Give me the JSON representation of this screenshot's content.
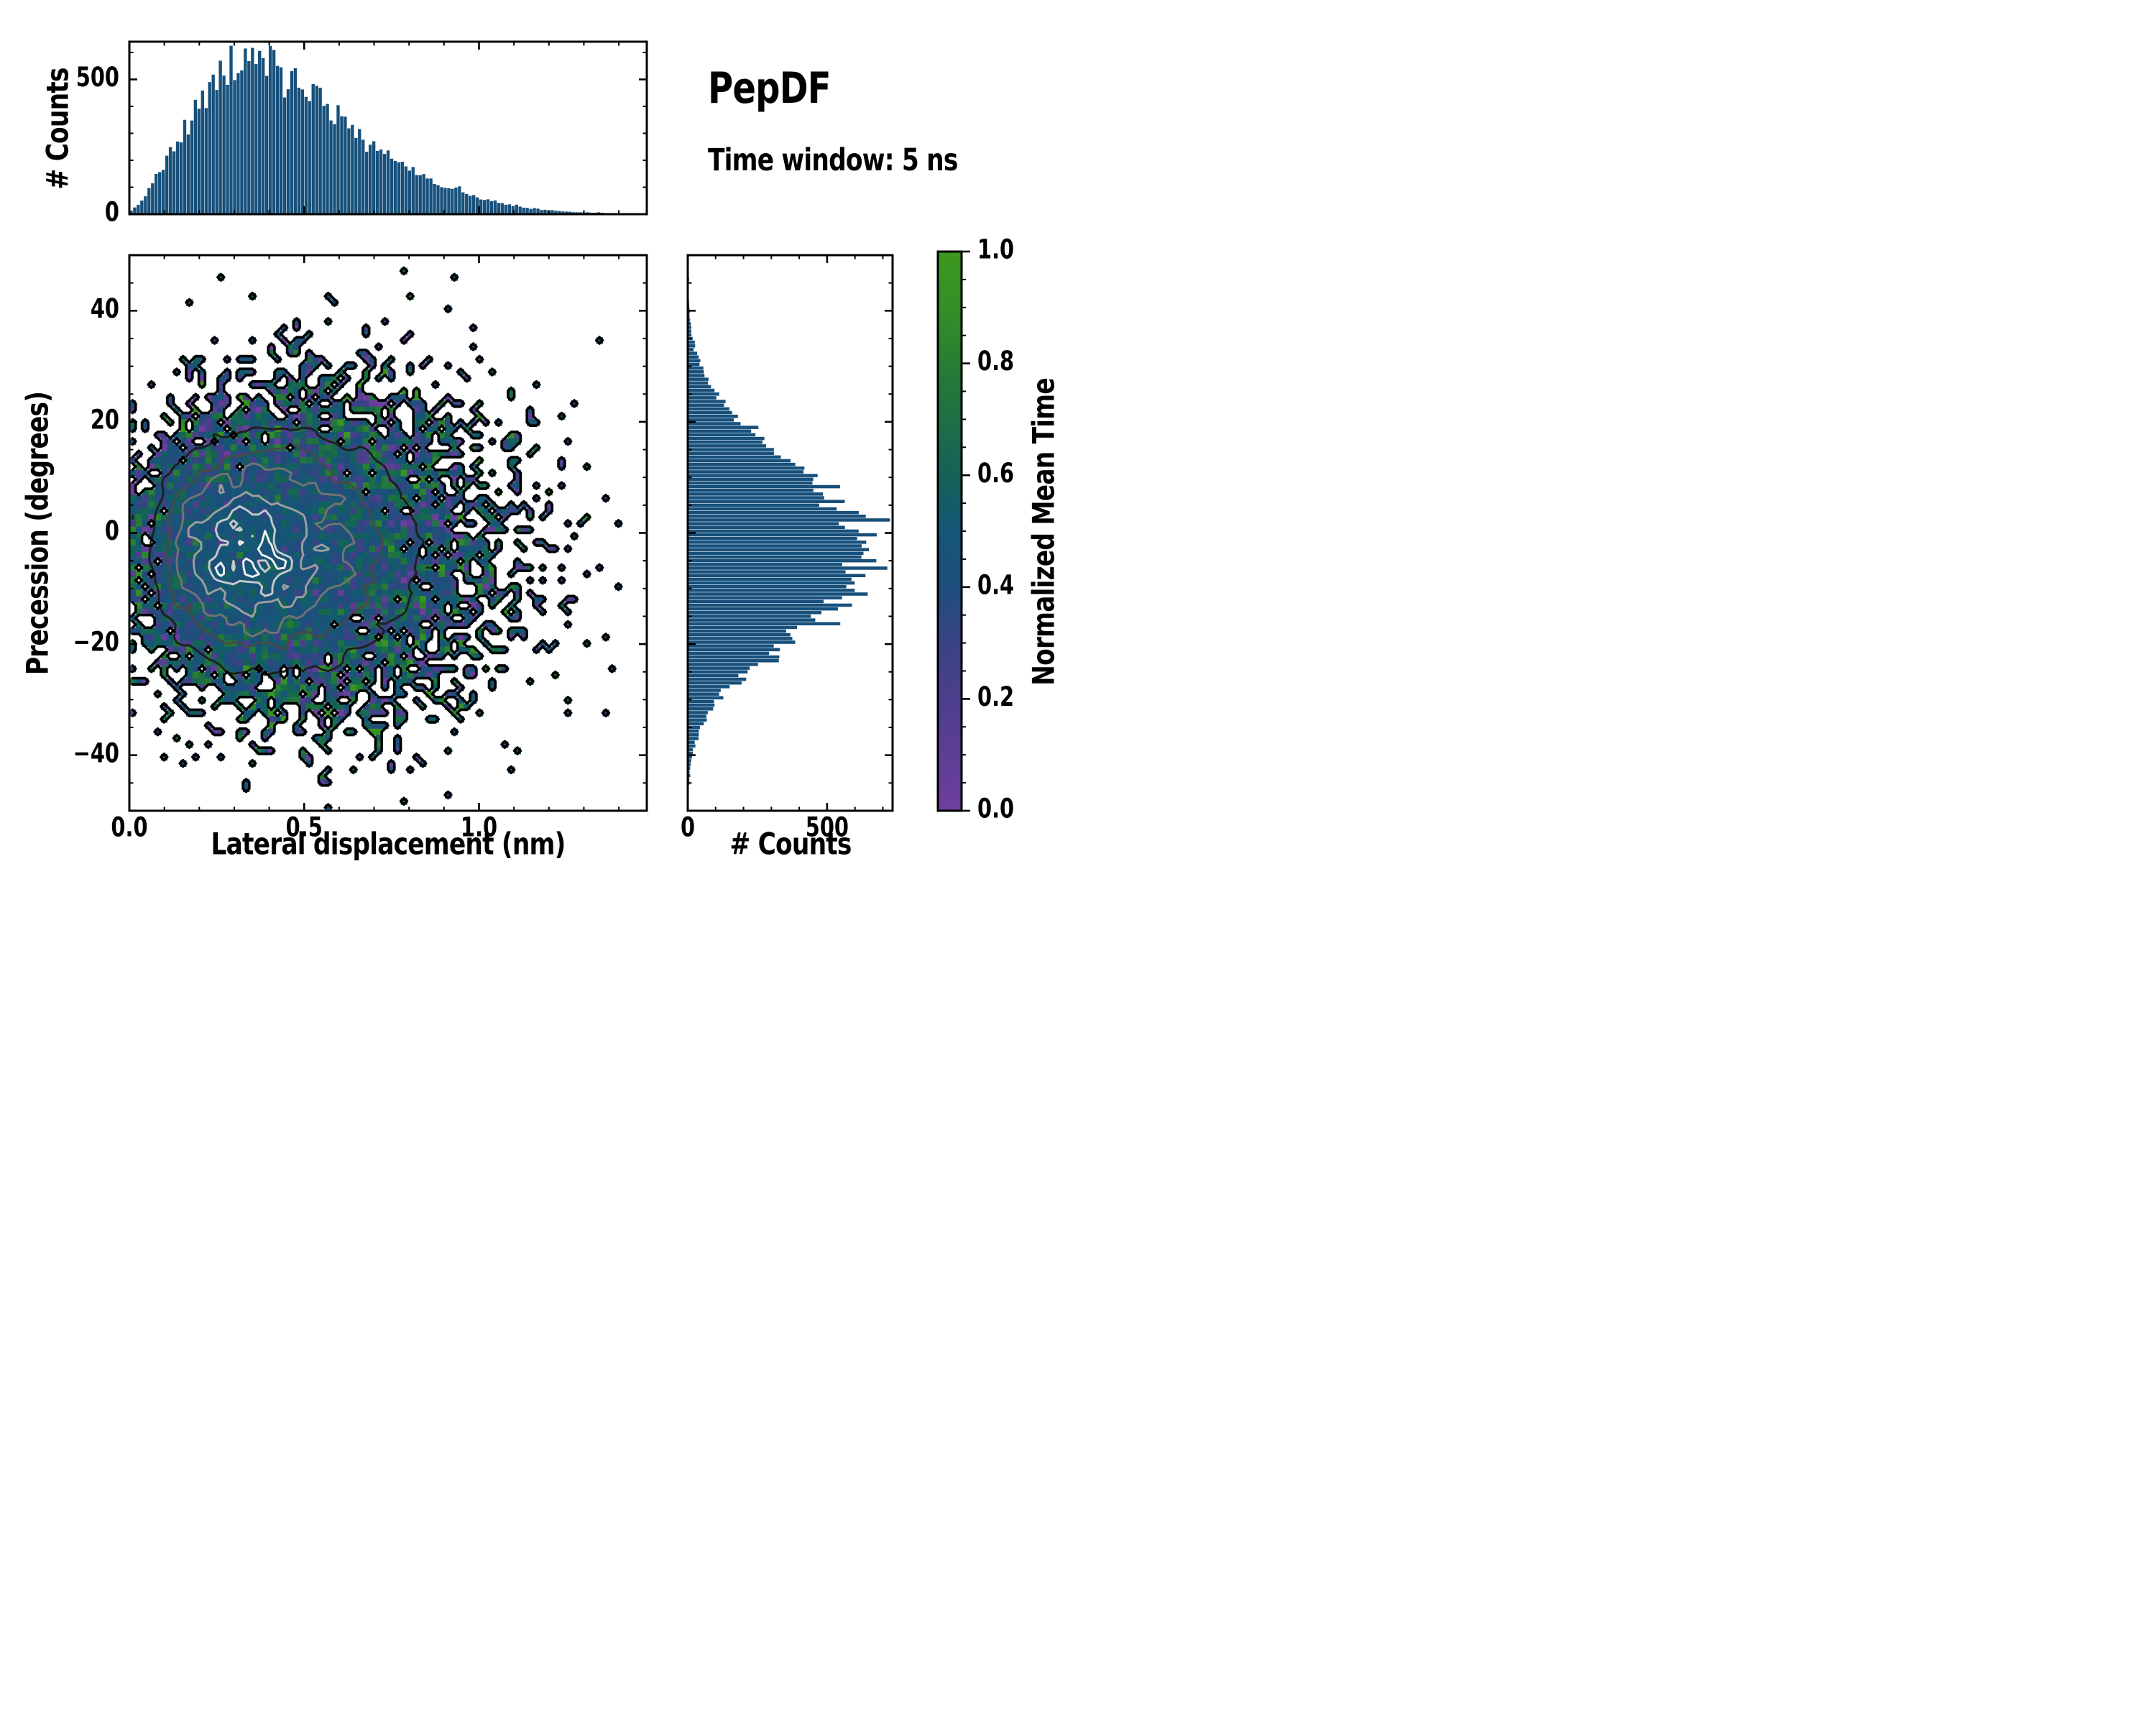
{
  "chart_data": {
    "type": "heatmap",
    "title": "PepDF",
    "subtitle": "Time window: 5 ns",
    "seed": 7,
    "colors": {
      "background": "#ffffff",
      "axis": "#000000",
      "histogram_fill": "#17507B"
    },
    "main": {
      "xlabel": "Lateral displacement (nm)",
      "ylabel": "Precession (degrees)",
      "xlim": [
        0,
        1.48
      ],
      "ylim": [
        -50,
        50
      ],
      "x_ticks": {
        "majors": [
          0,
          0.5,
          1.0
        ],
        "labels": [
          "0.0",
          "0.5",
          "1.0"
        ],
        "minor_step": 0.1
      },
      "y_ticks": {
        "majors": [
          40,
          20,
          0,
          -20,
          -40
        ],
        "labels": [
          "40",
          "20",
          "0",
          "−20",
          "−40"
        ],
        "minor_step": 5
      },
      "grid": {
        "nx": 82,
        "ny": 88
      },
      "distribution": {
        "y_mean": -3,
        "sigma_y_base": 10.5,
        "sigma_y_slope": 4.5,
        "sigma_y_xsat": 0.8,
        "peak_lambda": 62,
        "fill_rate": 0.16,
        "edge_boost": 0.2,
        "edge_scale": 0.05,
        "value_center": 0.47,
        "value_noise_min": 0.05,
        "value_noise_span": 0.2,
        "outlier_prob": 0.05
      },
      "contours": {
        "occupancy_level": 0.5,
        "occupancy_color": "#000000",
        "levels": [
          14,
          24,
          34,
          46,
          57,
          65
        ],
        "level_colors": [
          "#1f1f1f",
          "#494949",
          "#737373",
          "#9e9e9e",
          "#c9c9c9",
          "#f1f1f1"
        ]
      }
    },
    "top_histogram": {
      "ylabel": "# Counts",
      "ylim": [
        0,
        640
      ],
      "y_ticks": {
        "majors": [
          0,
          500
        ],
        "labels": [
          "0",
          "500"
        ],
        "minor_step": 100
      },
      "bins": 145,
      "noise": 0.08,
      "envelope": {
        "x": [
          0.0,
          0.03,
          0.06,
          0.09,
          0.12,
          0.15,
          0.18,
          0.21,
          0.25,
          0.29,
          0.33,
          0.37,
          0.41,
          0.45,
          0.5,
          0.55,
          0.6,
          0.65,
          0.7,
          0.75,
          0.8,
          0.85,
          0.9,
          0.95,
          1.0,
          1.05,
          1.1,
          1.15,
          1.2,
          1.25,
          1.3,
          1.4,
          1.48
        ],
        "counts": [
          5,
          40,
          100,
          165,
          230,
          300,
          360,
          420,
          480,
          540,
          575,
          580,
          555,
          520,
          470,
          415,
          360,
          305,
          255,
          210,
          170,
          135,
          105,
          80,
          60,
          44,
          32,
          22,
          15,
          10,
          6,
          2,
          0
        ]
      }
    },
    "right_histogram": {
      "xlabel": "# Counts",
      "xlim": [
        0,
        735
      ],
      "x_ticks": {
        "majors": [
          0,
          500
        ],
        "labels": [
          "0",
          "500"
        ],
        "minor_step": 100
      },
      "bins": 150,
      "noise": 0.08,
      "envelope": {
        "y": [
          -50,
          -46,
          -42,
          -38,
          -34,
          -30,
          -26,
          -22,
          -18,
          -14,
          -10,
          -6,
          -3,
          0,
          3,
          6,
          9,
          12,
          15,
          18,
          21,
          24,
          27,
          30,
          33,
          36,
          39,
          43,
          47,
          50
        ],
        "counts": [
          0,
          3,
          8,
          25,
          60,
          110,
          190,
          290,
          400,
          500,
          580,
          640,
          660,
          640,
          600,
          540,
          470,
          390,
          310,
          240,
          175,
          120,
          80,
          48,
          28,
          14,
          7,
          3,
          1,
          0
        ]
      }
    },
    "colorbar": {
      "label": "Normalized Mean Time",
      "range": [
        0.0,
        1.0
      ],
      "ticks": {
        "majors": [
          1.0,
          0.8,
          0.6,
          0.4,
          0.2,
          0.0
        ],
        "labels": [
          "1.0",
          "0.8",
          "0.6",
          "0.4",
          "0.2",
          "0.0"
        ],
        "minor_step": 0.05
      },
      "stops": [
        [
          0.0,
          "#6E3E9E"
        ],
        [
          0.1,
          "#5D3E95"
        ],
        [
          0.2,
          "#4C3F8C"
        ],
        [
          0.3,
          "#3A4384"
        ],
        [
          0.4,
          "#1E4E7C"
        ],
        [
          0.5,
          "#145776"
        ],
        [
          0.6,
          "#146258"
        ],
        [
          0.7,
          "#1C7045"
        ],
        [
          0.8,
          "#287D33"
        ],
        [
          0.9,
          "#339027"
        ],
        [
          1.0,
          "#3C981F"
        ]
      ]
    }
  }
}
